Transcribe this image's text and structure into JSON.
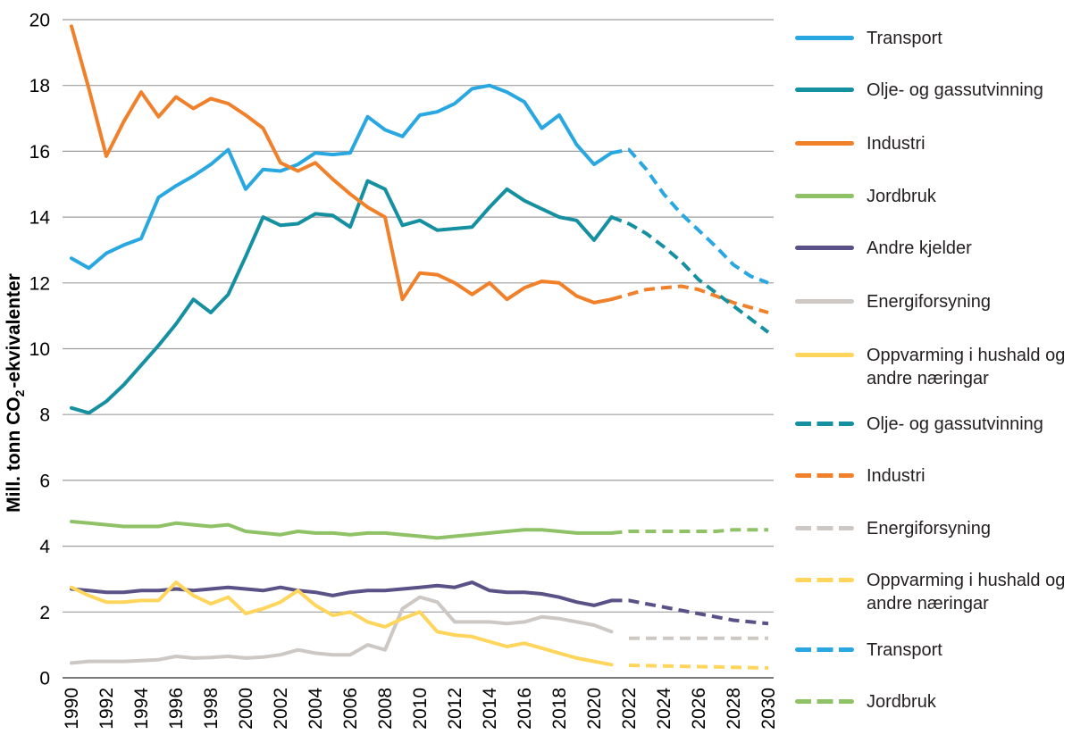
{
  "chart_data": {
    "type": "line",
    "title": "",
    "xlabel": "",
    "ylabel": "Mill. tonn CO2-ekvivalenter",
    "ylim": [
      0,
      20
    ],
    "xlim": [
      1990,
      2030
    ],
    "grid": "horizontal",
    "legend_position": "right",
    "historical_start_year": 1990,
    "projection_start_year": 2021,
    "y_axis": {
      "title_parts": [
        "Mill. tonn CO",
        "2",
        "-ekvivalenter"
      ],
      "ticks": [
        0,
        2,
        4,
        6,
        8,
        10,
        12,
        14,
        16,
        18,
        20
      ]
    },
    "x_axis": {
      "ticks": [
        1990,
        1992,
        1994,
        1996,
        1998,
        2000,
        2002,
        2004,
        2006,
        2008,
        2010,
        2012,
        2014,
        2016,
        2018,
        2020,
        2022,
        2024,
        2026,
        2028,
        2030
      ]
    },
    "colors": {
      "grid": "#9E9E9E",
      "zero_axis": "#4D4D4D",
      "text": "#000000",
      "legend_text": "#231F20"
    },
    "series": [
      {
        "id": "transport",
        "name": "Transport",
        "color": "#29A7E0",
        "historical": [
          12.75,
          12.45,
          12.9,
          13.15,
          13.35,
          14.6,
          14.95,
          15.25,
          15.6,
          16.05,
          14.85,
          15.45,
          15.4,
          15.6,
          15.95,
          15.9,
          15.95,
          17.05,
          16.65,
          16.45,
          17.1,
          17.2,
          17.45,
          17.9,
          18.0,
          17.8,
          17.5,
          16.7,
          17.1,
          16.2,
          15.6,
          15.95
        ],
        "projection": [
          15.95,
          16.05,
          15.45,
          14.7,
          14.1,
          13.6,
          13.1,
          12.55,
          12.2,
          12.0
        ]
      },
      {
        "id": "olje-og-gassutvinning",
        "name": "Olje- og gassutvinning",
        "color": "#1590A1",
        "historical": [
          8.2,
          8.05,
          8.4,
          8.9,
          9.5,
          10.1,
          10.75,
          11.5,
          11.1,
          11.65,
          12.8,
          14.0,
          13.75,
          13.8,
          14.1,
          14.05,
          13.7,
          15.1,
          14.85,
          13.75,
          13.9,
          13.6,
          13.65,
          13.7,
          14.3,
          14.85,
          14.5,
          14.25,
          14.0,
          13.9,
          13.3,
          14.0
        ],
        "projection": [
          14.0,
          13.8,
          13.5,
          13.1,
          12.65,
          12.1,
          11.7,
          11.3,
          10.9,
          10.5
        ]
      },
      {
        "id": "industri",
        "name": "Industri",
        "color": "#F0802A",
        "historical": [
          19.8,
          17.9,
          15.85,
          16.9,
          17.8,
          17.05,
          17.65,
          17.3,
          17.6,
          17.45,
          17.1,
          16.7,
          15.65,
          15.4,
          15.65,
          15.15,
          14.7,
          14.3,
          14.0,
          11.5,
          12.3,
          12.25,
          12.0,
          11.65,
          12.0,
          11.5,
          11.85,
          12.05,
          12.0,
          11.6,
          11.4,
          11.5
        ],
        "projection": [
          11.5,
          11.65,
          11.8,
          11.85,
          11.9,
          11.8,
          11.6,
          11.4,
          11.25,
          11.1
        ]
      },
      {
        "id": "jordbruk",
        "name": "Jordbruk",
        "color": "#8FC266",
        "historical": [
          4.75,
          4.7,
          4.65,
          4.6,
          4.6,
          4.6,
          4.7,
          4.65,
          4.6,
          4.65,
          4.45,
          4.4,
          4.35,
          4.45,
          4.4,
          4.4,
          4.35,
          4.4,
          4.4,
          4.35,
          4.3,
          4.25,
          4.3,
          4.35,
          4.4,
          4.45,
          4.5,
          4.5,
          4.45,
          4.4,
          4.4,
          4.4
        ],
        "projection": [
          4.4,
          4.45,
          4.45,
          4.45,
          4.45,
          4.45,
          4.45,
          4.5,
          4.5,
          4.5
        ]
      },
      {
        "id": "andre-kjelder",
        "name": "Andre kjelder",
        "color": "#5A5287",
        "historical": [
          2.7,
          2.65,
          2.6,
          2.6,
          2.65,
          2.65,
          2.7,
          2.65,
          2.7,
          2.75,
          2.7,
          2.65,
          2.75,
          2.65,
          2.6,
          2.5,
          2.6,
          2.65,
          2.65,
          2.7,
          2.75,
          2.8,
          2.75,
          2.9,
          2.65,
          2.6,
          2.6,
          2.55,
          2.45,
          2.3,
          2.2,
          2.35
        ],
        "projection": [
          2.35,
          2.35,
          2.25,
          2.15,
          2.05,
          1.95,
          1.85,
          1.75,
          1.7,
          1.65
        ]
      },
      {
        "id": "energiforsyning",
        "name": "Energiforsyning",
        "color": "#CDC8C4",
        "historical": [
          0.45,
          0.5,
          0.5,
          0.5,
          0.52,
          0.55,
          0.65,
          0.6,
          0.62,
          0.65,
          0.6,
          0.63,
          0.7,
          0.85,
          0.75,
          0.7,
          0.7,
          1.0,
          0.85,
          2.1,
          2.45,
          2.3,
          1.7,
          1.7,
          1.7,
          1.65,
          1.7,
          1.85,
          1.8,
          1.7,
          1.6,
          1.4
        ],
        "projection": [
          null,
          1.2,
          1.2,
          1.2,
          1.2,
          1.2,
          1.2,
          1.2,
          1.2,
          1.2
        ]
      },
      {
        "id": "oppvarming",
        "name": "Oppvarming i hushald og andre næringar",
        "color": "#FFD55C",
        "historical": [
          2.75,
          2.5,
          2.3,
          2.3,
          2.35,
          2.35,
          2.9,
          2.5,
          2.25,
          2.45,
          1.95,
          2.1,
          2.3,
          2.65,
          2.2,
          1.9,
          2.0,
          1.7,
          1.55,
          1.8,
          2.0,
          1.4,
          1.3,
          1.25,
          1.1,
          0.95,
          1.05,
          0.9,
          0.75,
          0.6,
          0.5,
          0.4
        ],
        "projection": [
          null,
          0.38,
          0.37,
          0.36,
          0.35,
          0.34,
          0.33,
          0.32,
          0.31,
          0.3
        ]
      }
    ],
    "legend": {
      "items": [
        {
          "label": "Transport",
          "series": 0,
          "dashed": false
        },
        {
          "label": "Olje- og gassutvinning",
          "series": 1,
          "dashed": false
        },
        {
          "label": "Industri",
          "series": 2,
          "dashed": false
        },
        {
          "label": "Jordbruk",
          "series": 3,
          "dashed": false
        },
        {
          "label": "Andre kjelder",
          "series": 4,
          "dashed": false
        },
        {
          "label": "Energiforsyning",
          "series": 5,
          "dashed": false
        },
        {
          "label": "Oppvarming i hushald og andre næringar",
          "series": 6,
          "dashed": false
        },
        {
          "label": "Olje- og gassutvinning",
          "series": 1,
          "dashed": true
        },
        {
          "label": "Industri",
          "series": 2,
          "dashed": true
        },
        {
          "label": "Energiforsyning",
          "series": 5,
          "dashed": true
        },
        {
          "label": "Oppvarming i hushald og andre næringar",
          "series": 6,
          "dashed": true
        },
        {
          "label": "Transport",
          "series": 0,
          "dashed": true
        },
        {
          "label": "Jordbruk",
          "series": 3,
          "dashed": true
        }
      ]
    }
  }
}
